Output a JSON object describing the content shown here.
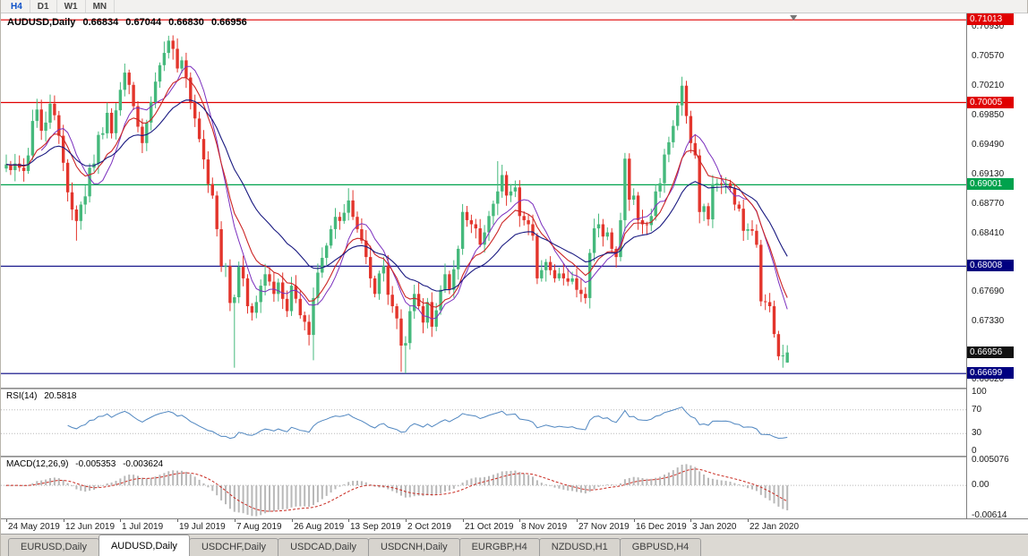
{
  "toolbar": {
    "timeframes": [
      {
        "label": "H4",
        "active": true
      },
      {
        "label": "D1",
        "active": false
      },
      {
        "label": "W1",
        "active": false
      },
      {
        "label": "MN",
        "active": false
      }
    ]
  },
  "colors": {
    "candle_up": "#45b97c",
    "candle_down": "#e3352c",
    "ma_fast": "#7b2fbe",
    "ma_mid": "#cc2525",
    "ma_slow": "#191980",
    "rsi": "#4f86c0",
    "macd_hist": "#b8b8b8",
    "macd_signal": "#c92a20",
    "badge_current": "#111111"
  },
  "chart": {
    "title": {
      "symbol_period": "AUDUSD,Daily",
      "open": "0.66834",
      "high": "0.67044",
      "low": "0.66830",
      "close": "0.66956"
    },
    "levels": [
      {
        "price": 0.71013,
        "label": "0.71013",
        "color": "#e00000"
      },
      {
        "price": 0.70005,
        "label": "0.70005",
        "color": "#e00000"
      },
      {
        "price": 0.69001,
        "label": "0.69001",
        "color": "#00a24d"
      },
      {
        "price": 0.68008,
        "label": "0.68008",
        "color": "#000080"
      },
      {
        "price": 0.66699,
        "label": "0.66699",
        "color": "#000080"
      }
    ],
    "current_price": {
      "value": 0.66956,
      "label": "0.66956"
    },
    "y_ticks": [
      "0.70930",
      "0.70570",
      "0.70210",
      "0.69850",
      "0.69490",
      "0.69130",
      "0.68770",
      "0.68410",
      "0.67690",
      "0.67330",
      "0.66620"
    ],
    "time_labels": [
      {
        "index": 0,
        "label": "24 May 2019"
      },
      {
        "index": 13,
        "label": "12 Jun 2019"
      },
      {
        "index": 26,
        "label": "1 Jul 2019"
      },
      {
        "index": 39,
        "label": "19 Jul 2019"
      },
      {
        "index": 52,
        "label": "7 Aug 2019"
      },
      {
        "index": 65,
        "label": "26 Aug 2019"
      },
      {
        "index": 78,
        "label": "13 Sep 2019"
      },
      {
        "index": 91,
        "label": "2 Oct 2019"
      },
      {
        "index": 104,
        "label": "21 Oct 2019"
      },
      {
        "index": 117,
        "label": "8 Nov 2019"
      },
      {
        "index": 130,
        "label": "27 Nov 2019"
      },
      {
        "index": 143,
        "label": "16 Dec 2019"
      },
      {
        "index": 156,
        "label": "3 Jan 2020"
      },
      {
        "index": 169,
        "label": "22 Jan 2020"
      }
    ]
  },
  "rsi": {
    "label": "RSI(14)",
    "value": "20.5818",
    "period": 14,
    "levels": [
      70,
      30
    ],
    "ticks": [
      "100",
      "70",
      "30",
      "0"
    ]
  },
  "macd": {
    "label": "MACD(12,26,9)",
    "value_main": "-0.005353",
    "value_signal": "-0.003624",
    "fast": 12,
    "slow": 26,
    "signal": 9,
    "range": [
      -0.00614,
      0.005076
    ],
    "ticks": [
      {
        "label": "0.005076",
        "value": 0.005076
      },
      {
        "label": "0.00",
        "value": 0
      },
      {
        "label": "-0.00614",
        "value": -0.00614
      }
    ]
  },
  "tabs": [
    {
      "label": "EURUSD,Daily",
      "active": false
    },
    {
      "label": "AUDUSD,Daily",
      "active": true
    },
    {
      "label": "USDCHF,Daily",
      "active": false
    },
    {
      "label": "USDCAD,Daily",
      "active": false
    },
    {
      "label": "USDCNH,Daily",
      "active": false
    },
    {
      "label": "EURGBP,H4",
      "active": false
    },
    {
      "label": "NZDUSD,H1",
      "active": false
    },
    {
      "label": "GBPUSD,H4",
      "active": false
    }
  ],
  "chart_data": {
    "type": "candlestick",
    "symbol": "AUDUSD",
    "timeframe": "Daily",
    "title": "AUDUSD,Daily 0.66834 0.67044 0.66830 0.66956",
    "y_domain": [
      0.6657,
      0.7107
    ],
    "first_open": 0.692,
    "ma_fast": 9,
    "ma_mid": 12,
    "ma_slow": 26,
    "closes": [
      0.6925,
      0.6918,
      0.6926,
      0.6921,
      0.6917,
      0.6936,
      0.6978,
      0.6992,
      0.6966,
      0.6976,
      0.6999,
      0.6985,
      0.696,
      0.6927,
      0.6891,
      0.687,
      0.6856,
      0.6876,
      0.6886,
      0.6921,
      0.6926,
      0.6961,
      0.6963,
      0.6988,
      0.6963,
      0.6991,
      0.7016,
      0.7037,
      0.7022,
      0.6996,
      0.6971,
      0.6951,
      0.6976,
      0.7001,
      0.7026,
      0.7046,
      0.7061,
      0.7076,
      0.7066,
      0.7042,
      0.7052,
      0.7031,
      0.7001,
      0.6981,
      0.6956,
      0.6931,
      0.6901,
      0.6887,
      0.6846,
      0.6801,
      0.6801,
      0.6756,
      0.6763,
      0.68,
      0.6786,
      0.6752,
      0.6744,
      0.6757,
      0.6777,
      0.6791,
      0.6782,
      0.6767,
      0.6781,
      0.6761,
      0.6746,
      0.6777,
      0.6761,
      0.6741,
      0.6733,
      0.6717,
      0.6762,
      0.6793,
      0.6811,
      0.6826,
      0.6846,
      0.6861,
      0.6856,
      0.6866,
      0.6881,
      0.6861,
      0.6846,
      0.6832,
      0.6812,
      0.6786,
      0.6767,
      0.6792,
      0.6801,
      0.6766,
      0.6752,
      0.6737,
      0.6704,
      0.6707,
      0.6746,
      0.6767,
      0.6752,
      0.6732,
      0.6757,
      0.6727,
      0.6747,
      0.6772,
      0.6791,
      0.6772,
      0.6797,
      0.6822,
      0.6867,
      0.6857,
      0.6852,
      0.6847,
      0.6827,
      0.6842,
      0.6862,
      0.6877,
      0.6892,
      0.6912,
      0.6887,
      0.6892,
      0.6897,
      0.6862,
      0.6857,
      0.6852,
      0.6838,
      0.6786,
      0.6796,
      0.6806,
      0.6796,
      0.6786,
      0.6792,
      0.6786,
      0.6782,
      0.6786,
      0.6772,
      0.6767,
      0.6762,
      0.6817,
      0.6847,
      0.6852,
      0.6837,
      0.6842,
      0.6822,
      0.6812,
      0.6857,
      0.6932,
      0.6882,
      0.6887,
      0.6857,
      0.6852,
      0.6851,
      0.6862,
      0.6892,
      0.6902,
      0.6937,
      0.6952,
      0.6972,
      0.6997,
      0.7021,
      0.6984,
      0.6951,
      0.6936,
      0.6867,
      0.6874,
      0.6858,
      0.6901,
      0.6902,
      0.6901,
      0.6902,
      0.6896,
      0.6876,
      0.6871,
      0.6844,
      0.6846,
      0.6844,
      0.6827,
      0.6758,
      0.6757,
      0.6752,
      0.6718,
      0.6691,
      0.6692,
      0.66956
    ],
    "overrides": {
      "16": {
        "l": 0.6832
      },
      "27": {
        "h": 0.7048
      },
      "37": {
        "h": 0.7082
      },
      "52": {
        "l": 0.6677
      },
      "70": {
        "l": 0.6686
      },
      "78": {
        "h": 0.6896
      },
      "90": {
        "l": 0.6672
      },
      "91": {
        "l": 0.667
      },
      "112": {
        "h": 0.6929
      },
      "141": {
        "h": 0.6939
      },
      "154": {
        "h": 0.7032
      },
      "172": {
        "l": 0.6752
      },
      "177": {
        "l": 0.6677
      },
      "178": {
        "o": 0.66834,
        "h": 0.67044,
        "l": 0.6683,
        "c": 0.66956
      }
    }
  }
}
